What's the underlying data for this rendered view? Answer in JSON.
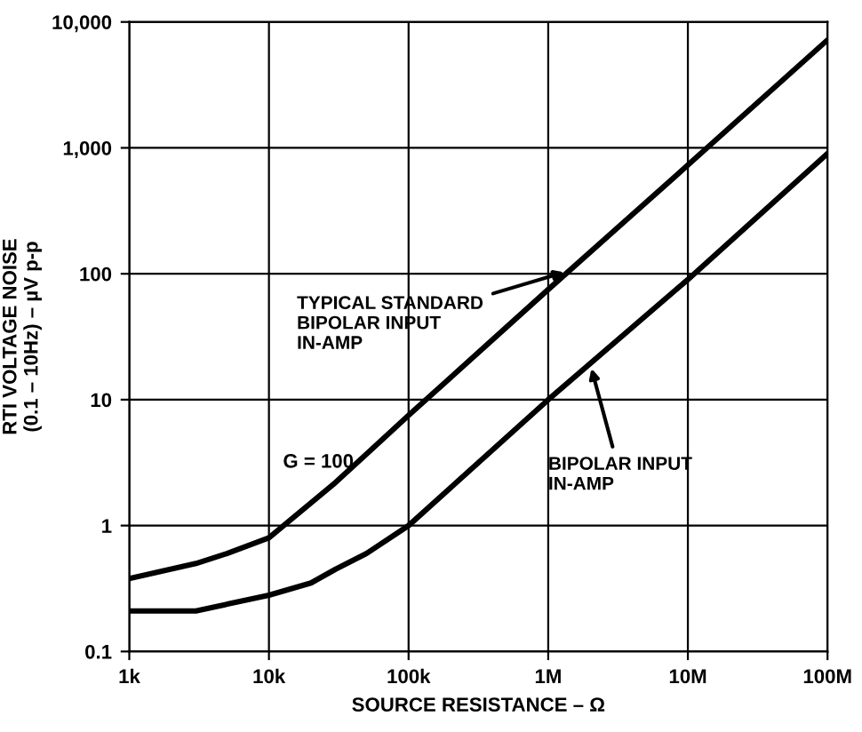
{
  "chart_data": {
    "type": "line",
    "xlabel": "SOURCE RESISTANCE – Ω",
    "ylabel": "RTI VOLTAGE NOISE\n(0.1 – 10Hz) – µV p-p",
    "log": "xy",
    "grid": true,
    "legend": false,
    "marker": "none",
    "line_style": "solid",
    "xlim": [
      1000,
      100000000
    ],
    "ylim": [
      0.1,
      10000
    ],
    "xticks": [
      {
        "value": 1000,
        "label": "1k"
      },
      {
        "value": 10000,
        "label": "10k"
      },
      {
        "value": 100000,
        "label": "100k"
      },
      {
        "value": 1000000,
        "label": "1M"
      },
      {
        "value": 10000000,
        "label": "10M"
      },
      {
        "value": 100000000,
        "label": "100M"
      }
    ],
    "yticks": [
      0.1,
      1,
      10,
      100,
      {
        "value": 1000,
        "label": "1,000"
      },
      {
        "value": 10000,
        "label": "10,000"
      }
    ],
    "series": [
      {
        "name": "TYPICAL STANDARD\nBIPOLAR INPUT\nIN-AMP",
        "color": "#000000",
        "x": [
          1000,
          3000,
          5000,
          10000,
          30000,
          100000,
          1000000,
          10000000,
          100000000
        ],
        "values": [
          0.38,
          0.5,
          0.6,
          0.8,
          2.2,
          7.5,
          75,
          730,
          7200
        ]
      },
      {
        "name": "BIPOLAR INPUT\nIN-AMP",
        "color": "#000000",
        "x": [
          1000,
          3000,
          10000,
          20000,
          30000,
          50000,
          100000,
          1000000,
          10000000,
          100000000
        ],
        "values": [
          0.21,
          0.21,
          0.28,
          0.35,
          0.45,
          0.6,
          1.0,
          10,
          90,
          900
        ]
      }
    ],
    "annotations": [
      "G = 100"
    ]
  }
}
